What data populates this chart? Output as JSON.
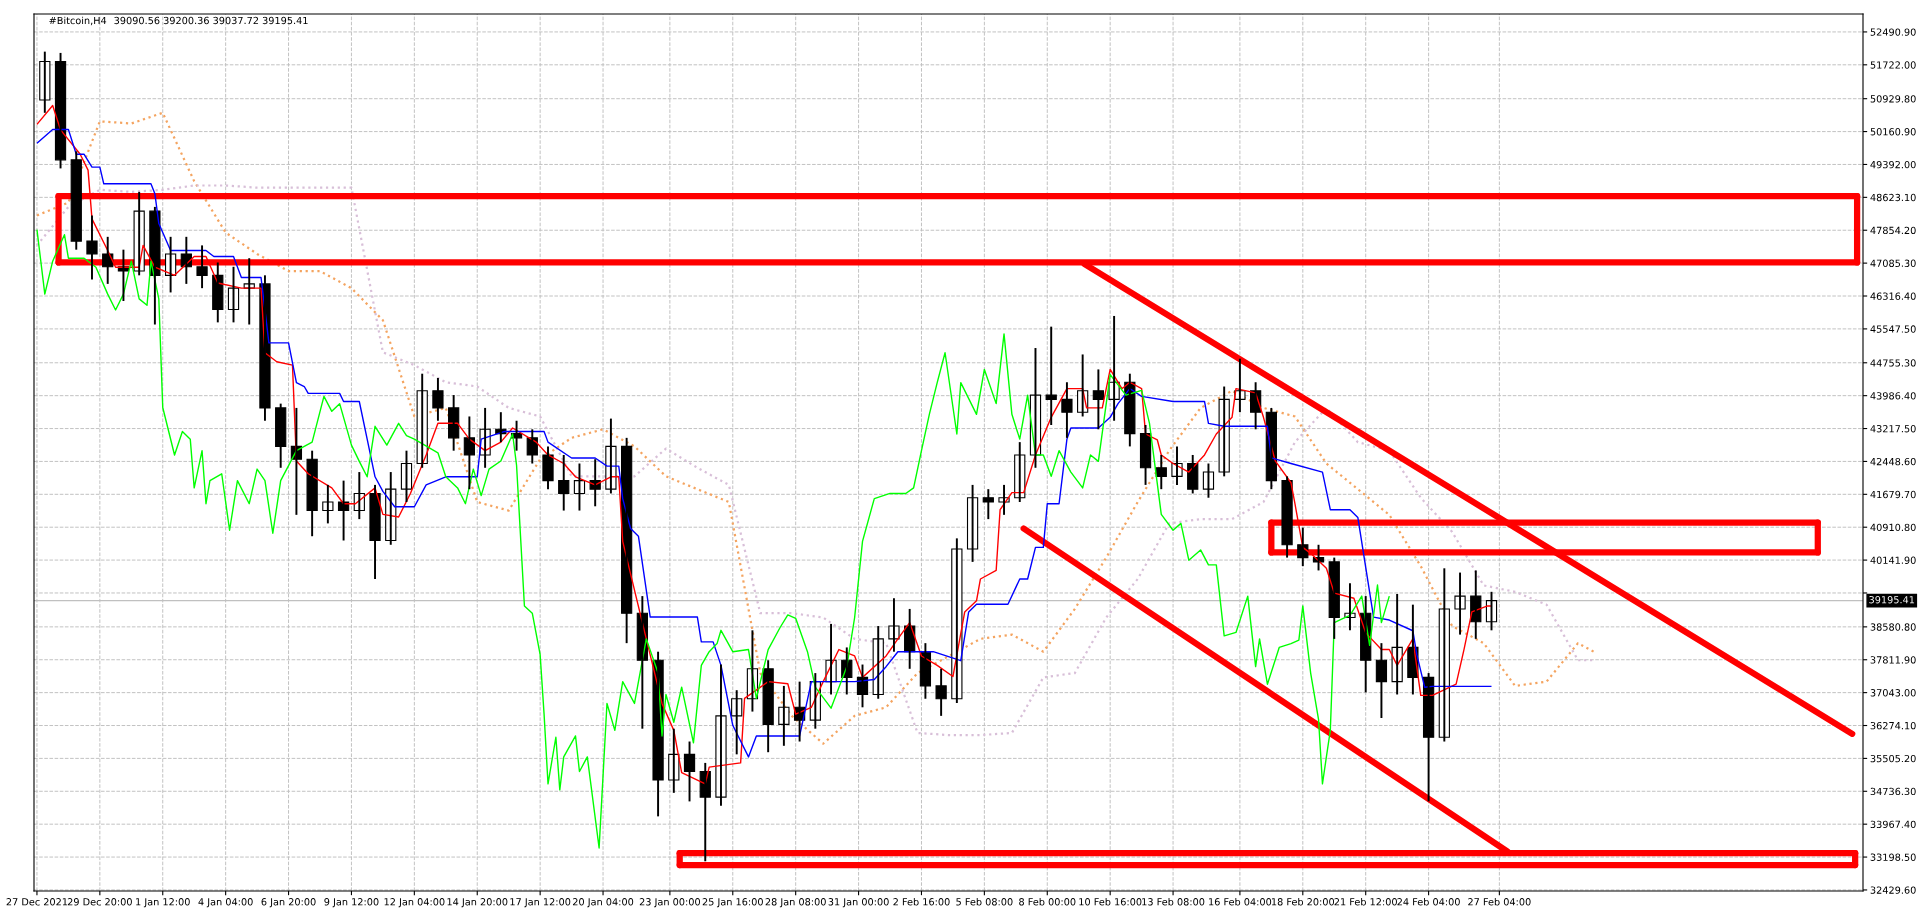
{
  "chart_data": {
    "type": "candlestick",
    "title": "#Bitcoin,H4",
    "annotations": [
      "39090.56 39200.36 39037.72 39195.41"
    ],
    "x": [
      "2021-12-27T12:00",
      "2021-12-28T04:00",
      "2021-12-28T20:00",
      "2021-12-29T12:00",
      "2021-12-30T04:00",
      "2021-12-30T20:00",
      "2021-12-31T12:00",
      "2022-01-01T04:00",
      "2022-01-01T20:00",
      "2022-01-02T12:00",
      "2022-01-03T04:00",
      "2022-01-03T20:00",
      "2022-01-04T12:00",
      "2022-01-05T04:00",
      "2022-01-05T20:00",
      "2022-01-06T12:00",
      "2022-01-07T04:00",
      "2022-01-07T20:00",
      "2022-01-08T12:00",
      "2022-01-09T04:00",
      "2022-01-09T20:00",
      "2022-01-10T12:00",
      "2022-01-11T04:00",
      "2022-01-11T20:00",
      "2022-01-12T12:00",
      "2022-01-13T04:00",
      "2022-01-13T20:00",
      "2022-01-14T12:00",
      "2022-01-15T04:00",
      "2022-01-15T20:00",
      "2022-01-16T12:00",
      "2022-01-17T04:00",
      "2022-01-17T20:00",
      "2022-01-18T12:00",
      "2022-01-19T04:00",
      "2022-01-19T20:00",
      "2022-01-20T12:00",
      "2022-01-21T04:00",
      "2022-01-21T20:00",
      "2022-01-22T12:00",
      "2022-01-23T04:00",
      "2022-01-23T20:00",
      "2022-01-24T12:00",
      "2022-01-25T04:00",
      "2022-01-25T20:00",
      "2022-01-26T12:00",
      "2022-01-27T04:00",
      "2022-01-27T20:00",
      "2022-01-28T12:00",
      "2022-01-29T04:00",
      "2022-01-29T20:00",
      "2022-01-30T12:00",
      "2022-01-31T04:00",
      "2022-01-31T20:00",
      "2022-02-01T12:00",
      "2022-02-02T04:00",
      "2022-02-02T20:00",
      "2022-02-03T12:00",
      "2022-02-04T04:00",
      "2022-02-04T20:00",
      "2022-02-05T12:00",
      "2022-02-06T04:00",
      "2022-02-06T20:00",
      "2022-02-07T12:00",
      "2022-02-08T04:00",
      "2022-02-08T20:00",
      "2022-02-09T12:00",
      "2022-02-10T04:00",
      "2022-02-10T20:00",
      "2022-02-11T12:00",
      "2022-02-12T04:00",
      "2022-02-12T20:00",
      "2022-02-13T12:00",
      "2022-02-14T04:00",
      "2022-02-14T20:00",
      "2022-02-15T12:00",
      "2022-02-16T04:00",
      "2022-02-16T20:00",
      "2022-02-17T12:00",
      "2022-02-18T04:00",
      "2022-02-18T20:00",
      "2022-02-19T12:00",
      "2022-02-20T04:00",
      "2022-02-20T20:00",
      "2022-02-21T12:00",
      "2022-02-22T04:00",
      "2022-02-22T20:00",
      "2022-02-23T12:00",
      "2022-02-24T04:00",
      "2022-02-24T20:00",
      "2022-02-25T12:00",
      "2022-02-26T04:00",
      "2022-02-26T20:00"
    ],
    "ohlc": [
      [
        50900,
        52030,
        50600,
        51800
      ],
      [
        51800,
        52000,
        49300,
        49500
      ],
      [
        49500,
        49700,
        47400,
        47600
      ],
      [
        47600,
        48200,
        46700,
        47300
      ],
      [
        47300,
        47700,
        46600,
        47000
      ],
      [
        47000,
        47400,
        46200,
        46900
      ],
      [
        46900,
        48750,
        46800,
        48300
      ],
      [
        48300,
        48400,
        45650,
        46800
      ],
      [
        46800,
        47700,
        46400,
        47300
      ],
      [
        47300,
        47700,
        46600,
        47000
      ],
      [
        47000,
        47500,
        46500,
        46800
      ],
      [
        46800,
        47100,
        45700,
        46000
      ],
      [
        46000,
        47000,
        45700,
        46500
      ],
      [
        46500,
        47200,
        45650,
        46600
      ],
      [
        46600,
        46800,
        43400,
        43700
      ],
      [
        43700,
        43800,
        42300,
        42800
      ],
      [
        42800,
        43700,
        41200,
        42500
      ],
      [
        42500,
        42700,
        40700,
        41300
      ],
      [
        41300,
        41900,
        41000,
        41500
      ],
      [
        41500,
        42000,
        40600,
        41300
      ],
      [
        41300,
        42200,
        41100,
        41700
      ],
      [
        41700,
        41900,
        39700,
        40600
      ],
      [
        40600,
        42200,
        40500,
        41800
      ],
      [
        41800,
        42700,
        41500,
        42400
      ],
      [
        42400,
        44500,
        42300,
        44100
      ],
      [
        44100,
        44400,
        43400,
        43700
      ],
      [
        43700,
        44000,
        42700,
        43000
      ],
      [
        43000,
        43500,
        41800,
        42600
      ],
      [
        42600,
        43700,
        42300,
        43200
      ],
      [
        43200,
        43600,
        42900,
        43100
      ],
      [
        43100,
        43400,
        42700,
        43000
      ],
      [
        43000,
        43200,
        42400,
        42600
      ],
      [
        42600,
        42800,
        41800,
        42000
      ],
      [
        42000,
        42600,
        41300,
        41700
      ],
      [
        41700,
        42400,
        41300,
        42000
      ],
      [
        42000,
        42500,
        41400,
        41800
      ],
      [
        41800,
        43450,
        41700,
        42800
      ],
      [
        42800,
        43000,
        38200,
        38900
      ],
      [
        38900,
        39300,
        36200,
        37800
      ],
      [
        37800,
        38000,
        34150,
        35000
      ],
      [
        35000,
        36200,
        34700,
        35600
      ],
      [
        35600,
        35900,
        34500,
        35200
      ],
      [
        35200,
        35400,
        33100,
        34600
      ],
      [
        34600,
        37700,
        34400,
        36500
      ],
      [
        36500,
        37100,
        35600,
        36900
      ],
      [
        36900,
        38500,
        36600,
        37600
      ],
      [
        37600,
        37800,
        35650,
        36300
      ],
      [
        36300,
        37200,
        35800,
        36700
      ],
      [
        36700,
        37300,
        35900,
        36400
      ],
      [
        36400,
        37500,
        36200,
        37300
      ],
      [
        37300,
        38650,
        37000,
        37800
      ],
      [
        37800,
        38100,
        37000,
        37400
      ],
      [
        37400,
        37700,
        36700,
        37000
      ],
      [
        37000,
        38600,
        36900,
        38300
      ],
      [
        38300,
        39250,
        38000,
        38600
      ],
      [
        38600,
        39000,
        37600,
        38000
      ],
      [
        38000,
        38200,
        36900,
        37200
      ],
      [
        37200,
        37600,
        36500,
        36900
      ],
      [
        36900,
        40650,
        36800,
        40400
      ],
      [
        40400,
        41900,
        40100,
        41600
      ],
      [
        41600,
        41800,
        41100,
        41500
      ],
      [
        41500,
        41900,
        41200,
        41600
      ],
      [
        41600,
        42900,
        41500,
        42600
      ],
      [
        42600,
        45100,
        42300,
        44000
      ],
      [
        44000,
        45600,
        43300,
        43900
      ],
      [
        43900,
        44300,
        43000,
        43600
      ],
      [
        43600,
        44950,
        43500,
        44100
      ],
      [
        44100,
        44600,
        43200,
        43900
      ],
      [
        43900,
        45850,
        43400,
        44300
      ],
      [
        44300,
        44500,
        42800,
        43100
      ],
      [
        43100,
        43300,
        41900,
        42300
      ],
      [
        42300,
        42600,
        41800,
        42100
      ],
      [
        42100,
        42800,
        41900,
        42400
      ],
      [
        42400,
        42600,
        41700,
        41800
      ],
      [
        41800,
        42400,
        41600,
        42200
      ],
      [
        42200,
        44200,
        42100,
        43900
      ],
      [
        43900,
        44850,
        43600,
        44100
      ],
      [
        44100,
        44300,
        43200,
        43600
      ],
      [
        43600,
        43700,
        41800,
        42000
      ],
      [
        42000,
        42100,
        40200,
        40500
      ],
      [
        40500,
        40900,
        40000,
        40200
      ],
      [
        40200,
        40500,
        39900,
        40100
      ],
      [
        40100,
        40200,
        38300,
        38800
      ],
      [
        38800,
        39600,
        38500,
        38900
      ],
      [
        38900,
        39300,
        37050,
        37800
      ],
      [
        37800,
        38200,
        36450,
        37300
      ],
      [
        37300,
        39350,
        37000,
        38100
      ],
      [
        38100,
        39100,
        37000,
        37400
      ],
      [
        37400,
        37500,
        34500,
        36000
      ],
      [
        36000,
        39950,
        35900,
        39000
      ],
      [
        39000,
        39850,
        38400,
        39300
      ],
      [
        39300,
        39900,
        38300,
        38700
      ],
      [
        38700,
        39400,
        38500,
        39195.41
      ]
    ],
    "color": "#000000",
    "series": [
      {
        "type": "line",
        "color": "#f4a460",
        "line_style": "dotted",
        "x": [
          "2021-12-27T04:00",
          "2021-12-28T12:00",
          "2021-12-29T20:00",
          "2021-12-31T04:00",
          "2022-01-01T12:00",
          "2022-01-02T20:00",
          "2022-01-04T04:00",
          "2022-01-05T12:00",
          "2022-01-06T20:00",
          "2022-01-08T04:00",
          "2022-01-09T12:00",
          "2022-01-10T20:00",
          "2022-01-12T04:00",
          "2022-01-13T12:00",
          "2022-01-14T20:00",
          "2022-01-16T04:00",
          "2022-01-17T12:00",
          "2022-01-18T20:00",
          "2022-01-20T04:00",
          "2022-01-21T12:00",
          "2022-01-22T20:00",
          "2022-01-24T04:00",
          "2022-01-25T12:00",
          "2022-01-26T20:00",
          "2022-01-28T04:00",
          "2022-01-29T12:00",
          "2022-01-30T20:00",
          "2022-02-01T04:00",
          "2022-02-02T12:00",
          "2022-02-03T20:00",
          "2022-02-05T04:00",
          "2022-02-06T12:00",
          "2022-02-07T20:00",
          "2022-02-09T04:00",
          "2022-02-10T12:00",
          "2022-02-11T20:00",
          "2022-02-13T04:00",
          "2022-02-14T12:00",
          "2022-02-15T20:00",
          "2022-02-17T04:00",
          "2022-02-18T12:00",
          "2022-02-19T20:00",
          "2022-02-21T04:00",
          "2022-02-22T12:00",
          "2022-02-23T20:00",
          "2022-02-25T04:00",
          "2022-02-26T12:00",
          "2022-02-27T20:00",
          "2022-03-01T04:00",
          "2022-03-02T12:00",
          "2022-03-03T04:00"
        ],
        "values": [
          48200,
          48500,
          50400,
          50350,
          50600,
          49000,
          47800,
          47300,
          46900,
          46900,
          46500,
          45750,
          43500,
          43700,
          41500,
          41300,
          42500,
          43000,
          43200,
          42800,
          42100,
          41800,
          41500,
          37500,
          36500,
          35850,
          36500,
          36700,
          37500,
          37900,
          38300,
          38400,
          38000,
          39000,
          40200,
          41500,
          42700,
          43700,
          44100,
          43700,
          43500,
          42400,
          41800,
          41200,
          40000,
          38600,
          38200,
          37200,
          37300,
          38200,
          38000
        ]
      },
      {
        "type": "line",
        "color": "#d8bfd8",
        "line_style": "dotted",
        "x": [
          "2021-12-27T04:00",
          "2021-12-28T12:00",
          "2021-12-29T20:00",
          "2021-12-31T04:00",
          "2022-01-01T12:00",
          "2022-01-02T20:00",
          "2022-01-04T04:00",
          "2022-01-05T12:00",
          "2022-01-06T20:00",
          "2022-01-08T04:00",
          "2022-01-09T12:00",
          "2022-01-10T20:00",
          "2022-01-12T04:00",
          "2022-01-13T12:00",
          "2022-01-14T20:00",
          "2022-01-16T04:00",
          "2022-01-17T12:00",
          "2022-01-18T20:00",
          "2022-01-20T04:00",
          "2022-01-21T12:00",
          "2022-01-22T20:00",
          "2022-01-24T04:00",
          "2022-01-25T12:00",
          "2022-01-26T20:00",
          "2022-01-28T04:00",
          "2022-01-29T12:00",
          "2022-01-30T20:00",
          "2022-02-01T04:00",
          "2022-02-02T12:00",
          "2022-02-03T20:00",
          "2022-02-05T04:00",
          "2022-02-06T12:00",
          "2022-02-07T20:00",
          "2022-02-09T04:00",
          "2022-02-10T12:00",
          "2022-02-11T20:00",
          "2022-02-13T04:00",
          "2022-02-14T12:00",
          "2022-02-15T20:00",
          "2022-02-17T04:00",
          "2022-02-18T12:00",
          "2022-02-19T20:00",
          "2022-02-21T04:00",
          "2022-02-22T12:00",
          "2022-02-23T20:00",
          "2022-02-25T04:00",
          "2022-02-26T12:00",
          "2022-02-27T20:00",
          "2022-03-01T04:00",
          "2022-03-02T12:00",
          "2022-03-03T04:00"
        ],
        "values": [
          47500,
          48400,
          48800,
          48750,
          48800,
          48900,
          48900,
          48850,
          48850,
          48850,
          48850,
          45000,
          44700,
          44300,
          44200,
          43700,
          43500,
          42100,
          42100,
          42100,
          42750,
          42300,
          41900,
          38900,
          38900,
          38800,
          38300,
          38200,
          36100,
          36050,
          36050,
          36100,
          37400,
          37500,
          38800,
          39700,
          41000,
          41100,
          41100,
          41500,
          42900,
          43700,
          42900,
          42700,
          41600,
          40800,
          39550,
          39400,
          39100,
          37800,
          37800
        ]
      },
      {
        "type": "line",
        "color": "#ff0000",
        "x": [
          "2021-12-27T04:00",
          "2021-12-27T20:00",
          "2021-12-28T04:00",
          "2021-12-29T00:00",
          "2021-12-29T08:00",
          "2021-12-29T12:00",
          "2021-12-30T04:00",
          "2021-12-30T12:00",
          "2021-12-31T12:00",
          "2021-12-31T16:00",
          "2022-01-01T04:00",
          "2022-01-02T00:00",
          "2022-01-02T20:00",
          "2022-01-03T08:00",
          "2022-01-03T20:00",
          "2022-01-04T20:00",
          "2022-01-05T16:00",
          "2022-01-05T20:00",
          "2022-01-06T08:00",
          "2022-01-07T00:00",
          "2022-01-07T04:00",
          "2022-01-07T16:00",
          "2022-01-08T16:00",
          "2022-01-09T04:00",
          "2022-01-09T16:00",
          "2022-01-10T12:00",
          "2022-01-10T20:00",
          "2022-01-11T12:00",
          "2022-01-12T00:00",
          "2022-01-12T16:00",
          "2022-01-13T04:00",
          "2022-01-14T00:00",
          "2022-01-14T12:00",
          "2022-01-15T04:00",
          "2022-01-15T20:00",
          "2022-01-16T08:00",
          "2022-01-17T08:00",
          "2022-01-17T20:00",
          "2022-01-18T12:00",
          "2022-01-19T00:00",
          "2022-01-19T20:00",
          "2022-01-20T12:00",
          "2022-01-20T20:00",
          "2022-01-21T00:00",
          "2022-01-22T00:00",
          "2022-01-22T16:00",
          "2022-01-23T04:00",
          "2022-01-23T12:00",
          "2022-01-24T12:00",
          "2022-01-24T16:00",
          "2022-01-26T00:00",
          "2022-01-26T04:00",
          "2022-01-27T04:00",
          "2022-01-28T00:00",
          "2022-01-28T08:00",
          "2022-01-29T00:00",
          "2022-01-29T12:00",
          "2022-01-30T04:00",
          "2022-01-30T20:00",
          "2022-01-31T04:00",
          "2022-02-01T04:00",
          "2022-02-01T16:00",
          "2022-02-02T04:00",
          "2022-02-02T16:00",
          "2022-02-03T08:00",
          "2022-02-04T00:00",
          "2022-02-04T12:00",
          "2022-02-05T00:00",
          "2022-02-05T04:00",
          "2022-02-05T20:00",
          "2022-02-06T00:00",
          "2022-02-06T12:00",
          "2022-02-07T00:00",
          "2022-02-07T12:00",
          "2022-02-08T04:00",
          "2022-02-08T20:00",
          "2022-02-09T12:00",
          "2022-02-09T16:00",
          "2022-02-10T08:00",
          "2022-02-10T16:00",
          "2022-02-11T04:00",
          "2022-02-11T12:00",
          "2022-02-12T00:00",
          "2022-02-12T04:00",
          "2022-02-12T16:00",
          "2022-02-12T20:00",
          "2022-02-13T08:00",
          "2022-02-14T00:00",
          "2022-02-14T16:00",
          "2022-02-15T04:00",
          "2022-02-15T20:00",
          "2022-02-16T00:00",
          "2022-02-16T20:00",
          "2022-02-17T04:00",
          "2022-02-17T16:00",
          "2022-02-18T08:00",
          "2022-02-18T12:00",
          "2022-02-18T20:00",
          "2022-02-19T04:00",
          "2022-02-19T20:00",
          "2022-02-20T04:00",
          "2022-02-21T00:00",
          "2022-02-21T12:00",
          "2022-02-22T04:00",
          "2022-02-22T12:00",
          "2022-02-22T20:00",
          "2022-02-23T12:00",
          "2022-02-23T20:00",
          "2022-02-24T08:00",
          "2022-02-25T08:00",
          "2022-02-25T16:00",
          "2022-02-26T00:00",
          "2022-02-26T16:00",
          "2022-02-26T20:00"
        ],
        "values": [
          50330,
          50770,
          50200,
          49630,
          49260,
          48120,
          47380,
          46990,
          46990,
          47500,
          46990,
          46800,
          47240,
          47240,
          46620,
          46500,
          46500,
          44990,
          44780,
          44700,
          42460,
          42160,
          41830,
          41460,
          41460,
          41830,
          41210,
          41150,
          41700,
          42600,
          43340,
          43340,
          42970,
          42700,
          42900,
          43230,
          42900,
          42600,
          42400,
          42090,
          41900,
          42090,
          42090,
          40580,
          38300,
          36790,
          36160,
          35170,
          34910,
          35300,
          35400,
          36910,
          37300,
          37250,
          36540,
          36700,
          37300,
          38050,
          37900,
          37400,
          37900,
          38300,
          38680,
          37900,
          37680,
          37420,
          38930,
          39190,
          39700,
          39900,
          41320,
          41720,
          41720,
          42600,
          43480,
          44150,
          44150,
          43700,
          43700,
          44600,
          44150,
          44300,
          44150,
          43090,
          42950,
          42600,
          42400,
          42200,
          42600,
          43090,
          43480,
          44150,
          44050,
          43480,
          42460,
          41950,
          41460,
          40440,
          40300,
          39950,
          39370,
          39250,
          38440,
          38050,
          38050,
          37680,
          38300,
          36980,
          36980,
          37240,
          38050,
          38930,
          39070,
          39070
        ]
      },
      {
        "type": "line",
        "color": "#0000ff",
        "x": [
          "2021-12-27T04:00",
          "2021-12-27T20:00",
          "2021-12-28T12:00",
          "2021-12-28T20:00",
          "2021-12-29T04:00",
          "2021-12-29T12:00",
          "2021-12-29T20:00",
          "2021-12-30T00:00",
          "2022-01-01T00:00",
          "2022-01-01T04:00",
          "2022-01-01T08:00",
          "2022-01-01T20:00",
          "2022-01-03T08:00",
          "2022-01-03T16:00",
          "2022-01-04T12:00",
          "2022-01-04T20:00",
          "2022-01-05T16:00",
          "2022-01-06T00:00",
          "2022-01-06T20:00",
          "2022-01-07T04:00",
          "2022-01-07T12:00",
          "2022-01-07T16:00",
          "2022-01-09T00:00",
          "2022-01-09T04:00",
          "2022-01-09T20:00",
          "2022-01-10T04:00",
          "2022-01-10T12:00",
          "2022-01-10T20:00",
          "2022-01-11T08:00",
          "2022-01-12T04:00",
          "2022-01-12T16:00",
          "2022-01-13T12:00",
          "2022-01-14T20:00",
          "2022-01-15T00:00",
          "2022-01-16T00:00",
          "2022-01-17T16:00",
          "2022-01-17T20:00",
          "2022-01-18T20:00",
          "2022-01-19T20:00",
          "2022-01-20T08:00",
          "2022-01-20T20:00",
          "2022-01-21T00:00",
          "2022-01-21T08:00",
          "2022-01-21T16:00",
          "2022-01-22T04:00",
          "2022-01-24T04:00",
          "2022-01-24T08:00",
          "2022-01-24T20:00",
          "2022-01-25T04:00",
          "2022-01-25T16:00",
          "2022-01-26T08:00",
          "2022-01-26T16:00",
          "2022-01-28T12:00",
          "2022-01-29T00:00",
          "2022-01-30T20:00",
          "2022-01-31T16:00",
          "2022-02-01T04:00",
          "2022-02-01T16:00",
          "2022-02-03T04:00",
          "2022-02-04T08:00",
          "2022-02-04T16:00",
          "2022-02-05T00:00",
          "2022-02-06T08:00",
          "2022-02-06T20:00",
          "2022-02-07T04:00",
          "2022-02-07T12:00",
          "2022-02-07T20:00",
          "2022-02-08T00:00",
          "2022-02-08T12:00",
          "2022-02-08T20:00",
          "2022-02-09T00:00",
          "2022-02-10T04:00",
          "2022-02-10T16:00",
          "2022-02-11T00:00",
          "2022-02-11T12:00",
          "2022-02-12T00:00",
          "2022-02-13T08:00",
          "2022-02-14T16:00",
          "2022-02-14T20:00",
          "2022-02-15T12:00",
          "2022-02-17T08:00",
          "2022-02-17T12:00",
          "2022-02-18T08:00",
          "2022-02-19T16:00",
          "2022-02-20T00:00",
          "2022-02-20T20:00",
          "2022-02-21T04:00",
          "2022-02-21T20:00",
          "2022-02-22T12:00",
          "2022-02-23T12:00",
          "2022-02-23T16:00",
          "2022-02-24T00:00",
          "2022-02-24T08:00",
          "2022-02-26T20:00"
        ],
        "values": [
          49890,
          50210,
          50210,
          49630,
          49630,
          49330,
          49330,
          48940,
          48940,
          48710,
          48010,
          47380,
          47380,
          47240,
          47240,
          46750,
          46750,
          45220,
          45220,
          44290,
          44200,
          44040,
          44040,
          43850,
          43850,
          42970,
          42090,
          41750,
          41390,
          41390,
          41900,
          42090,
          42090,
          42970,
          43150,
          43150,
          42900,
          42530,
          42530,
          42340,
          42340,
          41580,
          40880,
          40700,
          38810,
          38810,
          38230,
          38230,
          37680,
          36280,
          35540,
          36030,
          36030,
          37300,
          37300,
          37350,
          37650,
          38000,
          38000,
          37790,
          38930,
          39110,
          39110,
          39700,
          39700,
          40440,
          40440,
          41460,
          41460,
          42970,
          43230,
          43230,
          43480,
          43800,
          44150,
          43970,
          43850,
          43850,
          43340,
          43270,
          43270,
          42530,
          42400,
          42200,
          41320,
          41320,
          41140,
          38810,
          38740,
          38490,
          37930,
          37170,
          37190,
          37190
        ]
      },
      {
        "type": "line",
        "color": "#00ff00",
        "x": [
          "2021-12-27T04:00",
          "2021-12-27T12:00",
          "2021-12-27T20:00",
          "2021-12-28T08:00",
          "2021-12-28T12:00",
          "2021-12-29T04:00",
          "2021-12-29T16:00",
          "2021-12-30T04:00",
          "2021-12-30T12:00",
          "2021-12-30T20:00",
          "2021-12-31T04:00",
          "2021-12-31T12:00",
          "2021-12-31T20:00",
          "2022-01-01T00:00",
          "2022-01-01T08:00",
          "2022-01-01T12:00",
          "2022-01-02T00:00",
          "2022-01-02T08:00",
          "2022-01-02T16:00",
          "2022-01-02T20:00",
          "2022-01-03T04:00",
          "2022-01-03T08:00",
          "2022-01-03T12:00",
          "2022-01-04T00:00",
          "2022-01-04T08:00",
          "2022-01-04T16:00",
          "2022-01-05T04:00",
          "2022-01-05T12:00",
          "2022-01-05T20:00",
          "2022-01-06T04:00",
          "2022-01-06T12:00",
          "2022-01-07T04:00",
          "2022-01-07T20:00",
          "2022-01-08T08:00",
          "2022-01-08T16:00",
          "2022-01-09T00:00",
          "2022-01-09T12:00",
          "2022-01-09T20:00",
          "2022-01-10T04:00",
          "2022-01-10T12:00",
          "2022-01-11T00:00",
          "2022-01-11T12:00",
          "2022-01-11T20:00",
          "2022-01-12T04:00",
          "2022-01-13T04:00",
          "2022-01-13T12:00",
          "2022-01-14T00:00",
          "2022-01-14T08:00",
          "2022-01-14T16:00",
          "2022-01-15T00:00",
          "2022-01-15T08:00",
          "2022-01-15T20:00",
          "2022-01-16T08:00",
          "2022-01-16T12:00",
          "2022-01-16T20:00",
          "2022-01-17T04:00",
          "2022-01-17T12:00",
          "2022-01-17T16:00",
          "2022-01-17T20:00",
          "2022-01-18T04:00",
          "2022-01-18T08:00",
          "2022-01-18T12:00",
          "2022-01-19T00:00",
          "2022-01-19T04:00",
          "2022-01-19T12:00",
          "2022-01-20T00:00",
          "2022-01-20T08:00",
          "2022-01-20T16:00",
          "2022-01-21T00:00",
          "2022-01-21T12:00",
          "2022-01-22T00:00",
          "2022-01-22T12:00",
          "2022-01-22T16:00",
          "2022-01-22T20:00",
          "2022-01-23T04:00",
          "2022-01-23T12:00",
          "2022-01-24T00:00",
          "2022-01-24T08:00",
          "2022-01-24T16:00",
          "2022-01-25T00:00",
          "2022-01-25T04:00",
          "2022-01-25T16:00",
          "2022-01-26T08:00",
          "2022-01-26T16:00",
          "2022-01-27T04:00",
          "2022-01-27T16:00",
          "2022-01-28T00:00",
          "2022-01-28T08:00",
          "2022-01-28T20:00",
          "2022-01-29T04:00",
          "2022-01-29T20:00",
          "2022-01-30T12:00",
          "2022-01-30T20:00",
          "2022-01-31T04:00",
          "2022-01-31T16:00",
          "2022-02-01T08:00",
          "2022-02-02T00:00",
          "2022-02-02T08:00",
          "2022-02-02T16:00",
          "2022-02-03T00:00",
          "2022-02-03T08:00",
          "2022-02-03T16:00",
          "2022-02-04T04:00",
          "2022-02-04T08:00",
          "2022-02-05T00:00",
          "2022-02-05T08:00",
          "2022-02-05T20:00",
          "2022-02-06T04:00",
          "2022-02-06T12:00",
          "2022-02-06T20:00",
          "2022-02-07T04:00",
          "2022-02-07T12:00",
          "2022-02-07T20:00",
          "2022-02-08T04:00",
          "2022-02-08T12:00",
          "2022-02-09T00:00",
          "2022-02-09T12:00",
          "2022-02-09T20:00",
          "2022-02-10T04:00",
          "2022-02-10T16:00",
          "2022-02-11T08:00",
          "2022-02-12T00:00",
          "2022-02-12T08:00",
          "2022-02-12T20:00",
          "2022-02-13T08:00",
          "2022-02-13T16:00",
          "2022-02-14T00:00",
          "2022-02-14T12:00",
          "2022-02-14T20:00",
          "2022-02-15T04:00",
          "2022-02-15T12:00",
          "2022-02-16T00:00",
          "2022-02-16T12:00",
          "2022-02-16T20:00",
          "2022-02-17T00:00",
          "2022-02-17T08:00",
          "2022-02-17T20:00",
          "2022-02-18T08:00",
          "2022-02-18T16:00",
          "2022-02-18T20:00",
          "2022-02-19T04:00",
          "2022-02-19T12:00",
          "2022-02-19T16:00",
          "2022-02-19T20:00",
          "2022-02-20T00:00",
          "2022-02-20T04:00",
          "2022-02-20T12:00",
          "2022-02-20T20:00",
          "2022-02-21T08:00",
          "2022-02-21T16:00",
          "2022-02-22T00:00",
          "2022-02-22T04:00",
          "2022-02-22T12:00"
        ],
        "values": [
          47870,
          46360,
          47130,
          47750,
          47200,
          47200,
          46990,
          46360,
          45990,
          46360,
          47130,
          46250,
          46100,
          47130,
          46250,
          43710,
          42600,
          43150,
          42970,
          41830,
          42700,
          41460,
          42000,
          42160,
          40840,
          42000,
          41460,
          42270,
          42000,
          40770,
          42000,
          42700,
          42900,
          43970,
          43620,
          43800,
          42830,
          42450,
          42090,
          43270,
          42830,
          43340,
          43050,
          42970,
          42650,
          42090,
          41830,
          41460,
          42270,
          41650,
          42270,
          42460,
          43090,
          42360,
          39070,
          38900,
          37930,
          36540,
          34910,
          36000,
          34770,
          35540,
          36030,
          35200,
          35540,
          33410,
          36790,
          36160,
          37300,
          36790,
          38300,
          37500,
          36030,
          37000,
          36350,
          37170,
          35870,
          37680,
          38000,
          38190,
          38500,
          38000,
          38050,
          36910,
          38050,
          38560,
          38860,
          38780,
          38000,
          37170,
          36680,
          37650,
          38800,
          40580,
          41580,
          41700,
          41700,
          41830,
          42700,
          43550,
          44290,
          44990,
          43090,
          44290,
          43550,
          44600,
          43800,
          45430,
          43550,
          42970,
          44000,
          42600,
          42600,
          42100,
          42700,
          42200,
          41830,
          42600,
          42450,
          44480,
          44000,
          44110,
          43340,
          41210,
          40840,
          41000,
          40140,
          40380,
          40030,
          40030,
          38370,
          38450,
          39300,
          37650,
          38300,
          37240,
          38100,
          38190,
          38270,
          39070,
          37500,
          36420,
          34910,
          35540,
          36160,
          38680,
          38770,
          38850,
          39300,
          38150,
          39560,
          38680,
          39300
        ]
      },
      {
        "type": "line",
        "color": "#ff0000",
        "x": [
          "2021-12-28T02:00",
          "2022-03-14T08:00"
        ],
        "values": [
          48650,
          48650
        ]
      },
      {
        "type": "line",
        "color": "#ff0000",
        "x": [
          "2021-12-28T02:00",
          "2022-03-14T08:00"
        ],
        "values": [
          47100,
          47100
        ]
      },
      {
        "type": "line",
        "color": "#ff0000",
        "x": [
          "2022-02-17T12:00",
          "2022-03-12T16:00"
        ],
        "values": [
          41020,
          41020
        ]
      },
      {
        "type": "line",
        "color": "#ff0000",
        "x": [
          "2022-02-17T12:00",
          "2022-03-12T16:00"
        ],
        "values": [
          40320,
          40320
        ]
      },
      {
        "type": "line",
        "color": "#ff0000",
        "x": [
          "2022-01-23T10:00",
          "2022-03-14T06:00"
        ],
        "values": [
          33290,
          33290
        ]
      },
      {
        "type": "line",
        "color": "#ff0000",
        "x": [
          "2022-01-23T10:00",
          "2022-03-14T06:00"
        ],
        "values": [
          33010,
          33010
        ]
      },
      {
        "type": "line",
        "color": "#ff0000",
        "x": [
          "2022-02-09T14:00",
          "2022-03-14T03:00"
        ],
        "values": [
          47060,
          36080
        ]
      },
      {
        "type": "line",
        "color": "#ff0000",
        "x": [
          "2022-02-07T00:00",
          "2022-02-27T12:00"
        ],
        "values": [
          40880,
          33330
        ]
      }
    ],
    "xlim": [
      "2021-12-27T01:00",
      "2022-03-14T14:00"
    ],
    "ylim": [
      32405,
      52910
    ],
    "xticks": [
      {
        "value": "2021-12-27T04:00",
        "label": "27 Dec 2021"
      },
      {
        "value": "2021-12-29T20:00",
        "label": "29 Dec 20:00"
      },
      {
        "value": "2022-01-01T12:00",
        "label": "1 Jan 12:00"
      },
      {
        "value": "2022-01-04T04:00",
        "label": "4 Jan 04:00"
      },
      {
        "value": "2022-01-06T20:00",
        "label": "6 Jan 20:00"
      },
      {
        "value": "2022-01-09T12:00",
        "label": "9 Jan 12:00"
      },
      {
        "value": "2022-01-12T04:00",
        "label": "12 Jan 04:00"
      },
      {
        "value": "2022-01-14T20:00",
        "label": "14 Jan 20:00"
      },
      {
        "value": "2022-01-17T12:00",
        "label": "17 Jan 12:00"
      },
      {
        "value": "2022-01-20T04:00",
        "label": "20 Jan 04:00"
      },
      {
        "value": "2022-01-23T00:00",
        "label": "23 Jan 00:00"
      },
      {
        "value": "2022-01-25T16:00",
        "label": "25 Jan 16:00"
      },
      {
        "value": "2022-01-28T08:00",
        "label": "28 Jan 08:00"
      },
      {
        "value": "2022-01-31T00:00",
        "label": "31 Jan 00:00"
      },
      {
        "value": "2022-02-02T16:00",
        "label": "2 Feb 16:00"
      },
      {
        "value": "2022-02-05T08:00",
        "label": "5 Feb 08:00"
      },
      {
        "value": "2022-02-08T00:00",
        "label": "8 Feb 00:00"
      },
      {
        "value": "2022-02-10T16:00",
        "label": "10 Feb 16:00"
      },
      {
        "value": "2022-02-13T08:00",
        "label": "13 Feb 08:00"
      },
      {
        "value": "2022-02-16T04:00",
        "label": "16 Feb 04:00"
      },
      {
        "value": "2022-02-18T20:00",
        "label": "18 Feb 20:00"
      },
      {
        "value": "2022-02-21T12:00",
        "label": "21 Feb 12:00"
      },
      {
        "value": "2022-02-24T04:00",
        "label": "24 Feb 04:00"
      },
      {
        "value": "2022-02-27T04:00",
        "label": "27 Feb 04:00"
      }
    ],
    "yticks": [
      {
        "value": 32429.6,
        "label": "32429.60"
      },
      {
        "value": 33198.5,
        "label": "33198.50"
      },
      {
        "value": 33967.4,
        "label": "33967.40"
      },
      {
        "value": 34736.3,
        "label": "34736.30"
      },
      {
        "value": 35505.2,
        "label": "35505.20"
      },
      {
        "value": 36274.1,
        "label": "36274.10"
      },
      {
        "value": 37043,
        "label": "37043.00"
      },
      {
        "value": 37811.9,
        "label": "37811.90"
      },
      {
        "value": 38580.8,
        "label": "38580.80"
      },
      {
        "value": 39373,
        "label": null
      },
      {
        "value": 40141.9,
        "label": "40141.90"
      },
      {
        "value": 40910.8,
        "label": "40910.80"
      },
      {
        "value": 41679.7,
        "label": "41679.70"
      },
      {
        "value": 42448.6,
        "label": "42448.60"
      },
      {
        "value": 43217.5,
        "label": "43217.50"
      },
      {
        "value": 43986.4,
        "label": "43986.40"
      },
      {
        "value": 44755.3,
        "label": "44755.30"
      },
      {
        "value": 45547.5,
        "label": "45547.50"
      },
      {
        "value": 46316.4,
        "label": "46316.40"
      },
      {
        "value": 47085.3,
        "label": "47085.30"
      },
      {
        "value": 47854.2,
        "label": "47854.20"
      },
      {
        "value": 48623.1,
        "label": "48623.10"
      },
      {
        "value": 49392,
        "label": "49392.00"
      },
      {
        "value": 50160.9,
        "label": "50160.90"
      },
      {
        "value": 50929.8,
        "label": "50929.80"
      },
      {
        "value": 51722,
        "label": "51722.00"
      },
      {
        "value": 52490.9,
        "label": "52490.90"
      }
    ],
    "ref_lines": [
      {
        "axis": "y",
        "value": 39195.41,
        "label": "39195.41",
        "color": "#c0c0c0"
      }
    ],
    "grid": true
  }
}
